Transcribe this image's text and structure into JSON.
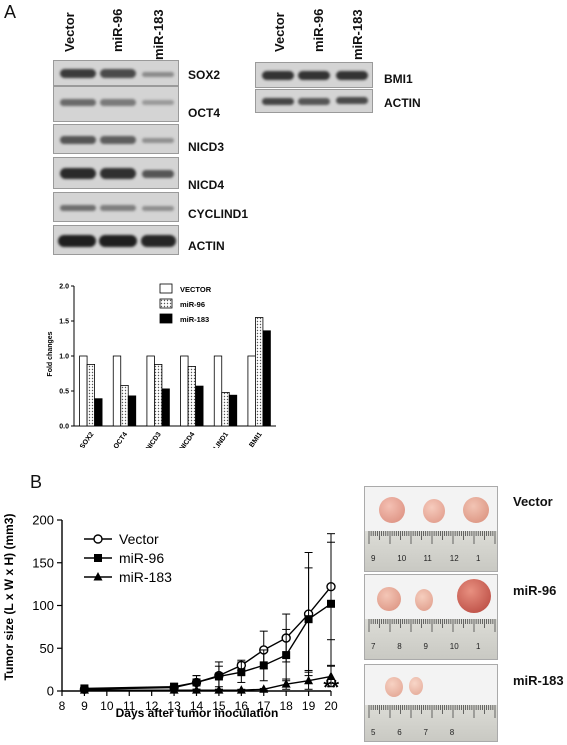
{
  "panel_a": {
    "letter": "A",
    "left_lanes": [
      "Vector",
      "miR-96",
      "miR-183"
    ],
    "left_blots": [
      "SOX2",
      "OCT4",
      "NICD3",
      "NICD4",
      "CYCLIND1",
      "ACTIN"
    ],
    "right_lanes": [
      "Vector",
      "miR-96",
      "miR-183"
    ],
    "right_blots": [
      "BMI1",
      "ACTIN"
    ]
  },
  "panel_b": {
    "letter": "B",
    "photo_labels": [
      "Vector",
      "miR-96",
      "miR-183"
    ],
    "ruler_numbers": [
      [
        "9",
        "10",
        "11",
        "12",
        "1"
      ],
      [
        "7",
        "8",
        "9",
        "10",
        "1"
      ],
      [
        "5",
        "6",
        "7",
        "8"
      ]
    ]
  },
  "chart_data": [
    {
      "type": "bar",
      "ylabel": "Fold changes",
      "ylim": [
        0,
        2.0
      ],
      "yticks": [
        "0.0",
        "0.5",
        "1.0",
        "1.5",
        "2.0"
      ],
      "categories": [
        "SOX2",
        "OCT4",
        "NICD3",
        "NICD4",
        "CYCLIND1",
        "BMI1"
      ],
      "legend_position": "top-right",
      "series": [
        {
          "name": "VECTOR",
          "values": [
            1.0,
            1.0,
            1.0,
            1.0,
            1.0,
            1.0
          ],
          "fill": "#ffffff"
        },
        {
          "name": "miR-96",
          "values": [
            0.88,
            0.58,
            0.88,
            0.85,
            0.48,
            1.55
          ],
          "fill": "dotted"
        },
        {
          "name": "miR-183",
          "values": [
            0.39,
            0.43,
            0.53,
            0.57,
            0.44,
            1.36
          ],
          "fill": "#000000"
        }
      ]
    },
    {
      "type": "line",
      "xlabel": "Days after tumor inoculation",
      "ylabel": "Tumor size (L x W x H) (mm3)",
      "xlim": [
        8,
        20
      ],
      "ylim": [
        0,
        200
      ],
      "xticks": [
        "8",
        "9",
        "10",
        "11",
        "12",
        "13",
        "14",
        "15",
        "16",
        "17",
        "18",
        "19",
        "20"
      ],
      "yticks": [
        "0",
        "50",
        "100",
        "150",
        "200"
      ],
      "legend_position": "top-left",
      "annotation": "**",
      "series": [
        {
          "name": "Vector",
          "marker": "open-circle",
          "x": [
            9,
            13,
            14,
            15,
            16,
            17,
            18,
            19,
            20
          ],
          "y": [
            2,
            4,
            10,
            18,
            30,
            48,
            62,
            90,
            122
          ],
          "err": [
            2,
            4,
            8,
            16,
            6,
            22,
            28,
            72,
            62
          ]
        },
        {
          "name": "miR-96",
          "marker": "filled-square",
          "x": [
            9,
            13,
            14,
            15,
            16,
            17,
            18,
            19,
            20
          ],
          "y": [
            3,
            5,
            10,
            17,
            22,
            30,
            42,
            84,
            102
          ],
          "err": [
            2,
            4,
            8,
            12,
            12,
            18,
            30,
            60,
            72
          ]
        },
        {
          "name": "miR-183",
          "marker": "filled-triangle",
          "x": [
            9,
            13,
            14,
            15,
            16,
            17,
            18,
            19,
            20
          ],
          "y": [
            1,
            1,
            1,
            1,
            1,
            2,
            8,
            12,
            17
          ],
          "err": [
            1,
            1,
            1,
            1,
            1,
            1,
            6,
            10,
            12
          ]
        }
      ]
    }
  ]
}
